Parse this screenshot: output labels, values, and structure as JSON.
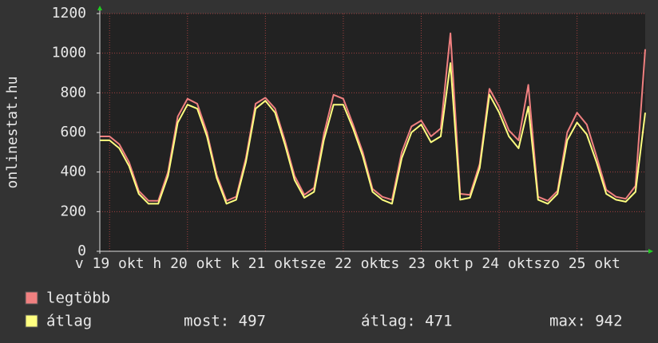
{
  "chart_data": {
    "type": "line",
    "y_label": "onlinestat.hu",
    "categories": [
      null,
      "v 19 okt",
      null,
      null,
      null,
      null,
      null,
      null,
      null,
      "h 20 okt",
      null,
      null,
      null,
      null,
      null,
      null,
      null,
      "k 21 okt",
      null,
      null,
      null,
      null,
      null,
      null,
      null,
      "sze 22 okt",
      null,
      null,
      null,
      null,
      null,
      null,
      null,
      "cs 23 okt",
      null,
      null,
      null,
      null,
      null,
      null,
      null,
      "p 24 okt",
      null,
      null,
      null,
      null,
      null,
      null,
      null,
      "szo 25 okt",
      null,
      null,
      null,
      null,
      null,
      null,
      null
    ],
    "series": [
      {
        "name": "legtöbb",
        "color": "#f08080",
        "values": [
          580,
          580,
          540,
          450,
          305,
          255,
          255,
          400,
          680,
          770,
          745,
          600,
          385,
          255,
          275,
          470,
          745,
          775,
          720,
          560,
          380,
          285,
          320,
          590,
          790,
          770,
          640,
          500,
          315,
          275,
          260,
          500,
          630,
          660,
          580,
          620,
          1100,
          290,
          285,
          440,
          820,
          730,
          610,
          560,
          840,
          275,
          255,
          305,
          600,
          700,
          640,
          480,
          310,
          275,
          265,
          330,
          1020
        ]
      },
      {
        "name": "átlag",
        "color": "#ffff80",
        "values": [
          560,
          560,
          520,
          430,
          290,
          240,
          240,
          380,
          650,
          740,
          720,
          580,
          370,
          240,
          260,
          450,
          720,
          760,
          700,
          540,
          360,
          270,
          300,
          560,
          740,
          740,
          620,
          480,
          300,
          260,
          240,
          470,
          600,
          640,
          550,
          580,
          950,
          260,
          270,
          420,
          790,
          700,
          580,
          520,
          730,
          260,
          240,
          290,
          560,
          650,
          590,
          450,
          290,
          260,
          250,
          300,
          700
        ]
      }
    ],
    "ylim": [
      0,
      1200
    ],
    "yticks": [
      0,
      200,
      400,
      600,
      800,
      1000,
      1200
    ],
    "grid": true,
    "legend_stats": [
      "most: 497",
      "átlag: 471",
      "max: 942"
    ]
  }
}
